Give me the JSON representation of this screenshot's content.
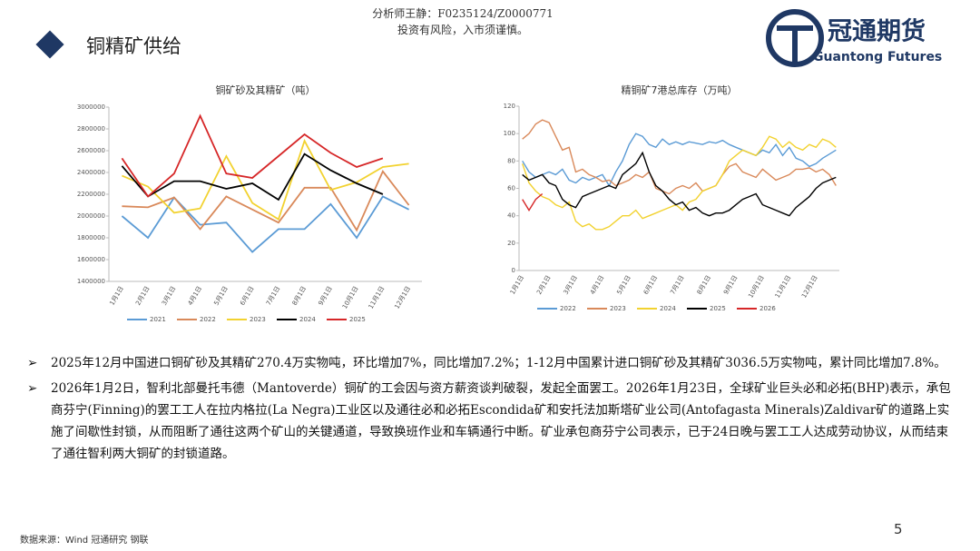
{
  "header": {
    "analyst": "分析师王静：F0235124/Z0000771",
    "risk": "投资有风险，入市须谨慎。",
    "logo_cn": "冠通期货",
    "logo_en": "Guantong Futures",
    "section": "铜精矿供给"
  },
  "chart_data": [
    {
      "type": "line",
      "title": "铜矿砂及其精矿（吨）",
      "categories": [
        "1月1日",
        "2月1日",
        "3月1日",
        "4月1日",
        "5月1日",
        "6月1日",
        "7月1日",
        "8月1日",
        "9月1日",
        "10月1日",
        "11月1日",
        "12月1日"
      ],
      "ylim": [
        1400000,
        3000000
      ],
      "yticks": [
        1400000,
        1600000,
        1800000,
        2000000,
        2200000,
        2400000,
        2600000,
        2800000,
        3000000
      ],
      "series": [
        {
          "name": "2021",
          "color": "#5b9bd5",
          "values": [
            2000000,
            1800000,
            2170000,
            1920000,
            1940000,
            1670000,
            1880000,
            1880000,
            2110000,
            1800000,
            2180000,
            2060000
          ]
        },
        {
          "name": "2022",
          "color": "#d9895a",
          "values": [
            2090000,
            2080000,
            2170000,
            1880000,
            2180000,
            2060000,
            1940000,
            2260000,
            2260000,
            1870000,
            2410000,
            2100000
          ]
        },
        {
          "name": "2023",
          "color": "#f2d230",
          "values": [
            2370000,
            2270000,
            2030000,
            2070000,
            2550000,
            2120000,
            1970000,
            2690000,
            2240000,
            2310000,
            2450000,
            2480000
          ]
        },
        {
          "name": "2024",
          "color": "#000000",
          "values": [
            2460000,
            2180000,
            2320000,
            2320000,
            2250000,
            2300000,
            2150000,
            2570000,
            2420000,
            2300000,
            2200000,
            null
          ]
        },
        {
          "name": "2025",
          "color": "#d62728",
          "values": [
            2530000,
            2180000,
            2390000,
            2920000,
            2390000,
            2350000,
            2550000,
            2750000,
            2580000,
            2450000,
            2530000,
            null
          ]
        }
      ]
    },
    {
      "type": "line",
      "title": "精铜矿7港总库存（万吨）",
      "categories": [
        "1月1日",
        null,
        null,
        null,
        "2月1日",
        null,
        null,
        null,
        "3月1日",
        null,
        null,
        null,
        "4月1日",
        null,
        null,
        null,
        "5月1日",
        null,
        null,
        null,
        "6月1日",
        null,
        null,
        null,
        "7月1日",
        null,
        null,
        null,
        "8月1日",
        null,
        null,
        null,
        "9月1日",
        null,
        null,
        null,
        "10月1日",
        null,
        null,
        null,
        "11月1日",
        null,
        null,
        null,
        "12月1日",
        null,
        null,
        null
      ],
      "ylim": [
        0,
        120
      ],
      "yticks": [
        0,
        20,
        40,
        60,
        80,
        100,
        120
      ],
      "series": [
        {
          "name": "2022",
          "color": "#5b9bd5",
          "values": [
            80,
            72,
            68,
            70,
            72,
            70,
            74,
            66,
            64,
            68,
            66,
            68,
            70,
            62,
            72,
            80,
            92,
            100,
            98,
            92,
            90,
            96,
            92,
            94,
            92,
            94,
            93,
            92,
            94,
            93,
            95,
            92,
            90,
            88,
            86,
            84,
            88,
            86,
            92,
            84,
            90,
            82,
            80,
            76,
            78,
            82,
            85,
            88
          ]
        },
        {
          "name": "2023",
          "color": "#d9895a",
          "values": [
            96,
            100,
            107,
            110,
            108,
            98,
            88,
            90,
            72,
            74,
            70,
            68,
            65,
            66,
            62,
            64,
            66,
            70,
            68,
            72,
            60,
            58,
            56,
            60,
            62,
            60,
            64,
            58,
            60,
            62,
            70,
            76,
            78,
            72,
            70,
            68,
            74,
            70,
            66,
            68,
            70,
            74,
            74,
            75,
            72,
            74,
            70,
            62
          ]
        },
        {
          "name": "2024",
          "color": "#f2d230",
          "values": [
            78,
            64,
            58,
            54,
            52,
            48,
            46,
            50,
            36,
            32,
            34,
            30,
            30,
            32,
            36,
            40,
            40,
            44,
            38,
            40,
            42,
            44,
            46,
            48,
            44,
            50,
            52,
            58,
            60,
            62,
            70,
            80,
            84,
            88,
            86,
            84,
            90,
            98,
            96,
            90,
            94,
            90,
            88,
            92,
            90,
            96,
            94,
            90
          ]
        },
        {
          "name": "2025",
          "color": "#000000",
          "values": [
            70,
            66,
            68,
            70,
            64,
            62,
            52,
            48,
            46,
            54,
            56,
            58,
            60,
            62,
            60,
            70,
            74,
            78,
            86,
            72,
            62,
            58,
            52,
            48,
            50,
            44,
            46,
            42,
            40,
            42,
            42,
            44,
            48,
            52,
            54,
            56,
            48,
            46,
            44,
            42,
            40,
            46,
            50,
            54,
            60,
            64,
            66,
            68
          ]
        },
        {
          "name": "2026",
          "color": "#d62728",
          "values": [
            52,
            44,
            52,
            56,
            null,
            null,
            null,
            null,
            null,
            null,
            null,
            null,
            null,
            null,
            null,
            null,
            null,
            null,
            null,
            null,
            null,
            null,
            null,
            null,
            null,
            null,
            null,
            null,
            null,
            null,
            null,
            null,
            null,
            null,
            null,
            null,
            null,
            null,
            null,
            null,
            null,
            null,
            null,
            null,
            null,
            null,
            null,
            null
          ]
        }
      ]
    }
  ],
  "bullets": [
    "2025年12月中国进口铜矿砂及其精矿270.4万实物吨，环比增加7%，同比增加7.2%；1-12月中国累计进口铜矿砂及其精矿3036.5万实物吨，累计同比增加7.8%。",
    "2026年1月2日，智利北部曼托韦德（Mantoverde）铜矿的工会因与资方薪资谈判破裂，发起全面罢工。2026年1月23日，全球矿业巨头必和必拓(BHP)表示，承包商芬宁(Finning)的罢工工人在拉内格拉(La Negra)工业区以及通往必和必拓Escondida矿和安托法加斯塔矿业公司(Antofagasta Minerals)Zaldivar矿的道路上实施了间歇性封锁，从而阻断了通往这两个矿山的关键通道，导致换班作业和车辆通行中断。矿业承包商芬宁公司表示，已于24日晚与罢工工人达成劳动协议，从而结束了通往智利两大铜矿的封锁道路。"
  ],
  "footer": {
    "source": "数据来源：Wind 冠通研究 钢联",
    "page": "5"
  }
}
